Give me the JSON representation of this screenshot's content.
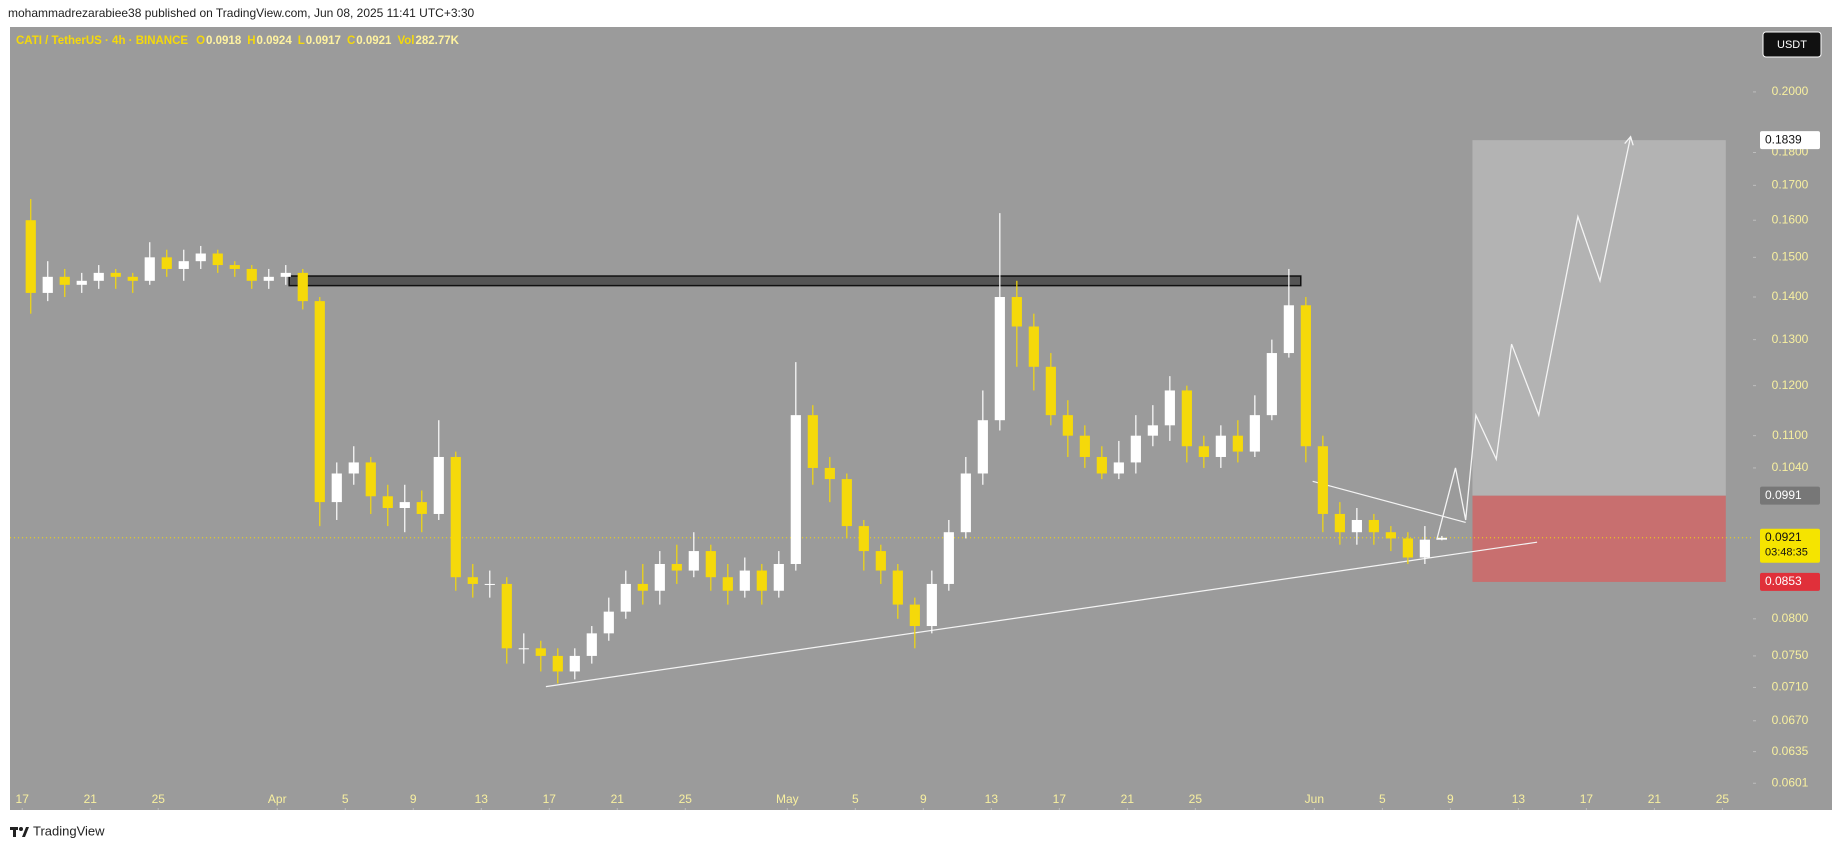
{
  "header": {
    "publisher": "mohammadrezarabiee38 published on TradingView.com, Jun 08, 2025 11:41 UTC+3:30"
  },
  "footer": {
    "brand": "TradingView"
  },
  "chart_data": {
    "type": "candlestick",
    "symbol": "CATI / TetherUS · 4h · BINANCE",
    "currency": "USDT",
    "legend_keys": [
      "O",
      "H",
      "L",
      "C",
      "Vol"
    ],
    "volume": 282770,
    "volume_label": "282.77K",
    "countdown": "03:48:35",
    "log_scale": true,
    "grid": false,
    "background": "#9b9b9b",
    "up_color": "#ffffff",
    "down_color": "#f5d90a",
    "xlim": [
      -0.72,
      101.8
    ],
    "ylim": [
      0.0594,
      0.2239
    ],
    "xticks": [
      {
        "value": 0,
        "label": "17"
      },
      {
        "value": 4,
        "label": "21"
      },
      {
        "value": 8,
        "label": "25"
      },
      {
        "value": 15,
        "label": "Apr"
      },
      {
        "value": 19,
        "label": "5"
      },
      {
        "value": 23,
        "label": "9"
      },
      {
        "value": 27,
        "label": "13"
      },
      {
        "value": 31,
        "label": "17"
      },
      {
        "value": 35,
        "label": "21"
      },
      {
        "value": 39,
        "label": "25"
      },
      {
        "value": 45,
        "label": "May"
      },
      {
        "value": 49,
        "label": "5"
      },
      {
        "value": 53,
        "label": "9"
      },
      {
        "value": 57,
        "label": "13"
      },
      {
        "value": 61,
        "label": "17"
      },
      {
        "value": 65,
        "label": "21"
      },
      {
        "value": 69,
        "label": "25"
      },
      {
        "value": 76,
        "label": "Jun"
      },
      {
        "value": 80,
        "label": "5"
      },
      {
        "value": 84,
        "label": "9"
      },
      {
        "value": 88,
        "label": "13"
      },
      {
        "value": 92,
        "label": "17"
      },
      {
        "value": 96,
        "label": "21"
      },
      {
        "value": 100,
        "label": "25"
      }
    ],
    "yticks": [
      {
        "value": 0.2,
        "label": "0.2000"
      },
      {
        "value": 0.18,
        "label": "0.1800"
      },
      {
        "value": 0.17,
        "label": "0.1700"
      },
      {
        "value": 0.16,
        "label": "0.1600"
      },
      {
        "value": 0.15,
        "label": "0.1500"
      },
      {
        "value": 0.14,
        "label": "0.1400"
      },
      {
        "value": 0.13,
        "label": "0.1300"
      },
      {
        "value": 0.12,
        "label": "0.1200"
      },
      {
        "value": 0.11,
        "label": "0.1100"
      },
      {
        "value": 0.104,
        "label": "0.1040"
      },
      {
        "value": 0.08,
        "label": "0.0800"
      },
      {
        "value": 0.075,
        "label": "0.0750"
      },
      {
        "value": 0.071,
        "label": "0.0710"
      },
      {
        "value": 0.067,
        "label": "0.0670"
      },
      0.0635,
      0.0601
    ],
    "x": [
      0.5,
      1.5,
      2.5,
      3.5,
      4.5,
      5.5,
      6.5,
      7.5,
      8.5,
      9.5,
      10.5,
      11.5,
      12.5,
      13.5,
      14.5,
      15.5,
      16.5,
      17.5,
      18.5,
      19.5,
      20.5,
      21.5,
      22.5,
      23.5,
      24.5,
      25.5,
      26.5,
      27.5,
      28.5,
      29.5,
      30.5,
      31.5,
      32.5,
      33.5,
      34.5,
      35.5,
      36.5,
      37.5,
      38.5,
      39.5,
      40.5,
      41.5,
      42.5,
      43.5,
      44.5,
      45.5,
      46.5,
      47.5,
      48.5,
      49.5,
      50.5,
      51.5,
      52.5,
      53.5,
      54.5,
      55.5,
      56.5,
      57.5,
      58.5,
      59.5,
      60.5,
      61.5,
      62.5,
      63.5,
      64.5,
      65.5,
      66.5,
      67.5,
      68.5,
      69.5,
      70.5,
      71.5,
      72.5,
      73.5,
      74.5,
      75.5,
      76.5,
      77.5,
      78.5,
      79.5,
      80.5,
      81.5,
      82.5,
      83.5
    ],
    "open": [
      0.16,
      0.141,
      0.145,
      0.143,
      0.144,
      0.146,
      0.145,
      0.144,
      0.15,
      0.147,
      0.149,
      0.151,
      0.148,
      0.147,
      0.144,
      0.145,
      0.146,
      0.139,
      0.098,
      0.103,
      0.105,
      0.099,
      0.097,
      0.098,
      0.096,
      0.106,
      0.086,
      0.085,
      0.085,
      0.076,
      0.076,
      0.075,
      0.073,
      0.075,
      0.078,
      0.081,
      0.085,
      0.084,
      0.088,
      0.087,
      0.09,
      0.086,
      0.084,
      0.087,
      0.084,
      0.088,
      0.114,
      0.104,
      0.102,
      0.094,
      0.09,
      0.087,
      0.082,
      0.079,
      0.085,
      0.093,
      0.103,
      0.113,
      0.14,
      0.133,
      0.124,
      0.114,
      0.11,
      0.106,
      0.103,
      0.105,
      0.11,
      0.112,
      0.119,
      0.108,
      0.106,
      0.11,
      0.107,
      0.114,
      0.127,
      0.138,
      0.108,
      0.096,
      0.093,
      0.095,
      0.093,
      0.092,
      0.089,
      0.0918
    ],
    "high": [
      0.166,
      0.149,
      0.147,
      0.146,
      0.148,
      0.147,
      0.146,
      0.154,
      0.152,
      0.152,
      0.153,
      0.152,
      0.149,
      0.148,
      0.147,
      0.148,
      0.147,
      0.14,
      0.105,
      0.108,
      0.106,
      0.101,
      0.101,
      0.1,
      0.113,
      0.107,
      0.088,
      0.087,
      0.086,
      0.078,
      0.077,
      0.076,
      0.076,
      0.079,
      0.083,
      0.087,
      0.088,
      0.09,
      0.091,
      0.093,
      0.091,
      0.088,
      0.089,
      0.088,
      0.09,
      0.125,
      0.116,
      0.106,
      0.103,
      0.095,
      0.091,
      0.088,
      0.083,
      0.087,
      0.095,
      0.106,
      0.119,
      0.162,
      0.144,
      0.136,
      0.127,
      0.117,
      0.112,
      0.108,
      0.109,
      0.114,
      0.116,
      0.122,
      0.12,
      0.11,
      0.112,
      0.113,
      0.118,
      0.13,
      0.147,
      0.14,
      0.11,
      0.098,
      0.097,
      0.096,
      0.094,
      0.093,
      0.094,
      0.0924
    ],
    "low": [
      0.136,
      0.139,
      0.14,
      0.141,
      0.142,
      0.142,
      0.141,
      0.143,
      0.145,
      0.144,
      0.147,
      0.146,
      0.145,
      0.142,
      0.142,
      0.143,
      0.137,
      0.094,
      0.095,
      0.101,
      0.096,
      0.094,
      0.093,
      0.093,
      0.095,
      0.084,
      0.083,
      0.083,
      0.074,
      0.074,
      0.073,
      0.0715,
      0.072,
      0.074,
      0.077,
      0.08,
      0.082,
      0.082,
      0.085,
      0.086,
      0.084,
      0.082,
      0.083,
      0.082,
      0.083,
      0.087,
      0.101,
      0.098,
      0.092,
      0.087,
      0.085,
      0.08,
      0.076,
      0.078,
      0.084,
      0.092,
      0.101,
      0.111,
      0.124,
      0.119,
      0.112,
      0.106,
      0.104,
      0.102,
      0.102,
      0.103,
      0.108,
      0.109,
      0.105,
      0.104,
      0.104,
      0.105,
      0.106,
      0.113,
      0.126,
      0.105,
      0.093,
      0.091,
      0.091,
      0.091,
      0.09,
      0.088,
      0.088,
      0.0917
    ],
    "close": [
      0.141,
      0.145,
      0.143,
      0.144,
      0.146,
      0.145,
      0.144,
      0.15,
      0.147,
      0.149,
      0.151,
      0.148,
      0.147,
      0.144,
      0.145,
      0.146,
      0.139,
      0.098,
      0.103,
      0.105,
      0.099,
      0.097,
      0.098,
      0.096,
      0.106,
      0.086,
      0.085,
      0.085,
      0.076,
      0.076,
      0.075,
      0.073,
      0.075,
      0.078,
      0.081,
      0.085,
      0.084,
      0.088,
      0.087,
      0.09,
      0.086,
      0.084,
      0.087,
      0.084,
      0.088,
      0.114,
      0.104,
      0.102,
      0.094,
      0.09,
      0.087,
      0.082,
      0.079,
      0.085,
      0.093,
      0.103,
      0.113,
      0.14,
      0.133,
      0.124,
      0.114,
      0.11,
      0.106,
      0.103,
      0.105,
      0.11,
      0.112,
      0.119,
      0.108,
      0.106,
      0.11,
      0.107,
      0.114,
      0.127,
      0.138,
      0.108,
      0.096,
      0.093,
      0.095,
      0.093,
      0.092,
      0.089,
      0.0918,
      0.0921
    ],
    "drawings": {
      "resistance_zone": {
        "x": [
          15.7,
          75.2
        ],
        "y": [
          0.1428,
          0.1452
        ]
      },
      "support_line": {
        "x": [
          30.8,
          89.1
        ],
        "y": [
          0.0711,
          0.0914
        ]
      },
      "upper_line": {
        "x": [
          75.9,
          84.9
        ],
        "y": [
          0.1016,
          0.0946
        ]
      },
      "position": {
        "x": [
          85.3,
          100.2
        ],
        "target": 0.1839,
        "entry": 0.0991,
        "stop": 0.0853
      },
      "projection": {
        "x": [
          83.2,
          84.3,
          84.9,
          85.5,
          86.7,
          87.6,
          89.2,
          91.5,
          92.8,
          94.6
        ],
        "y": [
          0.0918,
          0.104,
          0.095,
          0.114,
          0.1056,
          0.129,
          0.114,
          0.161,
          0.144,
          0.185
        ]
      }
    }
  }
}
